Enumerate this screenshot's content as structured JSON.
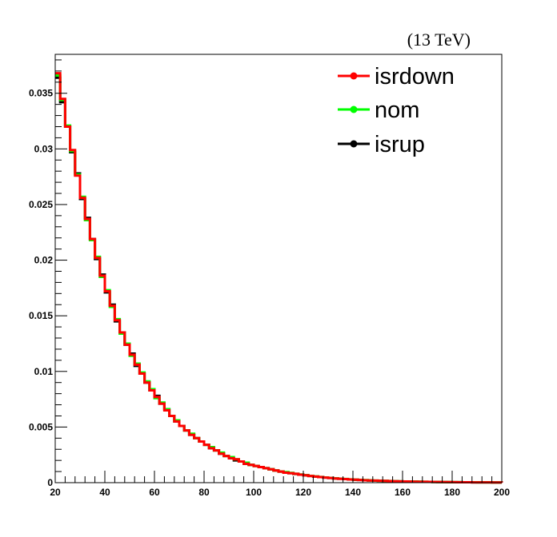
{
  "chart_data": {
    "type": "line",
    "annotation": "(13 TeV)",
    "xlim": [
      20,
      200
    ],
    "ylim": [
      0,
      0.0385
    ],
    "x_ticks": [
      20,
      40,
      60,
      80,
      100,
      120,
      140,
      160,
      180,
      200
    ],
    "y_ticks": [
      0,
      0.005,
      0.01,
      0.015,
      0.02,
      0.025,
      0.03,
      0.035
    ],
    "x_tick_labels": [
      "20",
      "40",
      "60",
      "80",
      "100",
      "120",
      "140",
      "160",
      "180",
      "200"
    ],
    "y_tick_labels": [
      "0",
      "0.005",
      "0.01",
      "0.015",
      "0.02",
      "0.025",
      "0.03",
      "0.035"
    ],
    "legend_position": "top-right",
    "grid": false,
    "bin_width": 2,
    "bin_edges_start": 20,
    "series": [
      {
        "name": "isrdown",
        "color": "#ff0000",
        "values": [
          0.0368,
          0.0345,
          0.032,
          0.0299,
          0.0276,
          0.0256,
          0.0237,
          0.0219,
          0.0202,
          0.0186,
          0.0172,
          0.0159,
          0.0146,
          0.0135,
          0.0124,
          0.0115,
          0.0106,
          0.0098,
          0.009,
          0.0083,
          0.0077,
          0.0071,
          0.0065,
          0.006,
          0.0055,
          0.0051,
          0.0047,
          0.0043,
          0.004,
          0.0037,
          0.0034,
          0.0031,
          0.0029,
          0.0026,
          0.0024,
          0.0022,
          0.0021,
          0.0019,
          0.0017,
          0.0016,
          0.0015,
          0.0014,
          0.0013,
          0.0012,
          0.0011,
          0.001,
          0.0009,
          0.00085,
          0.0008,
          0.00072,
          0.00066,
          0.0006,
          0.00055,
          0.0005,
          0.00046,
          0.00042,
          0.00038,
          0.00035,
          0.00032,
          0.00029,
          0.00027,
          0.00024,
          0.00022,
          0.0002,
          0.00019,
          0.00017,
          0.00016,
          0.00014,
          0.00013,
          0.00012,
          0.00011,
          0.0001,
          9e-05,
          8.5e-05,
          8e-05,
          7e-05,
          6.5e-05,
          6e-05,
          5.5e-05,
          5e-05,
          4.5e-05,
          4e-05,
          3.7e-05,
          3.4e-05,
          3e-05,
          2.8e-05,
          2.5e-05,
          2.3e-05,
          2e-05,
          1.8e-05
        ]
      },
      {
        "name": "nom",
        "color": "#00ff00",
        "values": [
          0.0366,
          0.0344,
          0.0321,
          0.0298,
          0.0277,
          0.0257,
          0.0236,
          0.0218,
          0.0203,
          0.0185,
          0.0173,
          0.0158,
          0.0147,
          0.0134,
          0.0125,
          0.0114,
          0.0107,
          0.0099,
          0.0091,
          0.0084,
          0.0076,
          0.0072,
          0.0066,
          0.006,
          0.0056,
          0.0051,
          0.0047,
          0.0044,
          0.004,
          0.0037,
          0.0034,
          0.0032,
          0.0029,
          0.0027,
          0.0024,
          0.0023,
          0.0021,
          0.0019,
          0.0018,
          0.0016,
          0.0015,
          0.0014,
          0.0013,
          0.0012,
          0.0011,
          0.001,
          0.00095,
          0.00088,
          0.0008,
          0.00074,
          0.00067,
          0.00061,
          0.00056,
          0.00051,
          0.00047,
          0.00043,
          0.00039,
          0.00036,
          0.00033,
          0.0003,
          0.00027,
          0.00025,
          0.00023,
          0.00021,
          0.00019,
          0.00017,
          0.00016,
          0.00015,
          0.00013,
          0.00012,
          0.00011,
          0.0001,
          9.5e-05,
          8.8e-05,
          8e-05,
          7.4e-05,
          6.7e-05,
          6.1e-05,
          5.6e-05,
          5.1e-05,
          4.7e-05,
          4.3e-05,
          3.9e-05,
          3.5e-05,
          3.2e-05,
          2.9e-05,
          2.6e-05,
          2.4e-05,
          2.1e-05,
          1.9e-05
        ]
      },
      {
        "name": "isrup",
        "color": "#000000",
        "values": [
          0.0364,
          0.0342,
          0.032,
          0.0297,
          0.0278,
          0.0255,
          0.0238,
          0.0219,
          0.0201,
          0.0187,
          0.0171,
          0.016,
          0.0145,
          0.0135,
          0.0124,
          0.0116,
          0.0105,
          0.0098,
          0.009,
          0.0083,
          0.0078,
          0.0071,
          0.0066,
          0.006,
          0.0055,
          0.0051,
          0.0047,
          0.0043,
          0.004,
          0.0037,
          0.0034,
          0.0031,
          0.0029,
          0.0026,
          0.0024,
          0.0022,
          0.002,
          0.0019,
          0.0017,
          0.0016,
          0.0015,
          0.0014,
          0.0013,
          0.0012,
          0.0011,
          0.001,
          0.00092,
          0.00085,
          0.00078,
          0.00072,
          0.00066,
          0.0006,
          0.00055,
          0.0005,
          0.00046,
          0.00042,
          0.00038,
          0.00035,
          0.00032,
          0.00029,
          0.00026,
          0.00024,
          0.00022,
          0.0002,
          0.00018,
          0.00017,
          0.00015,
          0.00014,
          0.00013,
          0.00012,
          0.00011,
          0.0001,
          9e-05,
          8.3e-05,
          7.6e-05,
          7e-05,
          6.4e-05,
          5.8e-05,
          5.3e-05,
          4.9e-05,
          4.5e-05,
          4.1e-05,
          3.7e-05,
          3.4e-05,
          3.1e-05,
          2.8e-05,
          2.5e-05,
          2.3e-05,
          2.1e-05,
          1.9e-05
        ]
      }
    ]
  }
}
